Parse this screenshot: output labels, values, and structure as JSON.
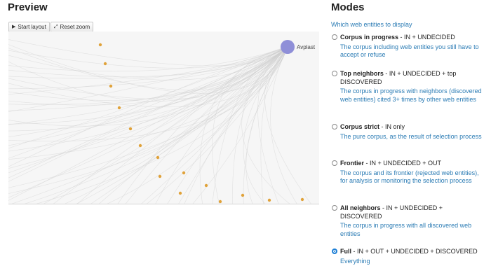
{
  "preview": {
    "title": "Preview",
    "toolbar": {
      "start_layout": "Start layout",
      "reset_zoom": "Reset zoom"
    },
    "graph": {
      "hub_label": "Avplast",
      "hub_color": "#8f8fd8",
      "node_color": "#e0a23a",
      "edge_color": "#cfcfcf"
    }
  },
  "modes": {
    "title": "Modes",
    "subtitle": "Which web entities to display",
    "options": [
      {
        "name": "Corpus in progress",
        "rest": " - IN + UNDECIDED",
        "desc": "The corpus including web entities you still have to accept or refuse",
        "selected": false
      },
      {
        "name": "Top neighbors",
        "rest": " - IN + UNDECIDED + top DISCOVERED",
        "desc": "The corpus in progress with neighbors (discovered web entities) cited 3+ times by other web entities",
        "selected": false
      },
      {
        "name": "Corpus strict",
        "rest": " - IN only",
        "desc": "The pure corpus, as the result of selection process",
        "selected": false
      },
      {
        "name": "Frontier",
        "rest": " - IN + UNDECIDED + OUT",
        "desc": "The corpus and its frontier (rejected web entities), for analysis or monitoring the selection process",
        "selected": false
      },
      {
        "name": "All neighbors",
        "rest": " - IN + UNDECIDED + DISCOVERED",
        "desc": "The corpus in progress with all discovered web entities",
        "selected": false
      },
      {
        "name": "Full",
        "rest": " - IN + OUT + UNDECIDED + DISCOVERED",
        "desc": "Everything",
        "selected": true
      }
    ]
  }
}
